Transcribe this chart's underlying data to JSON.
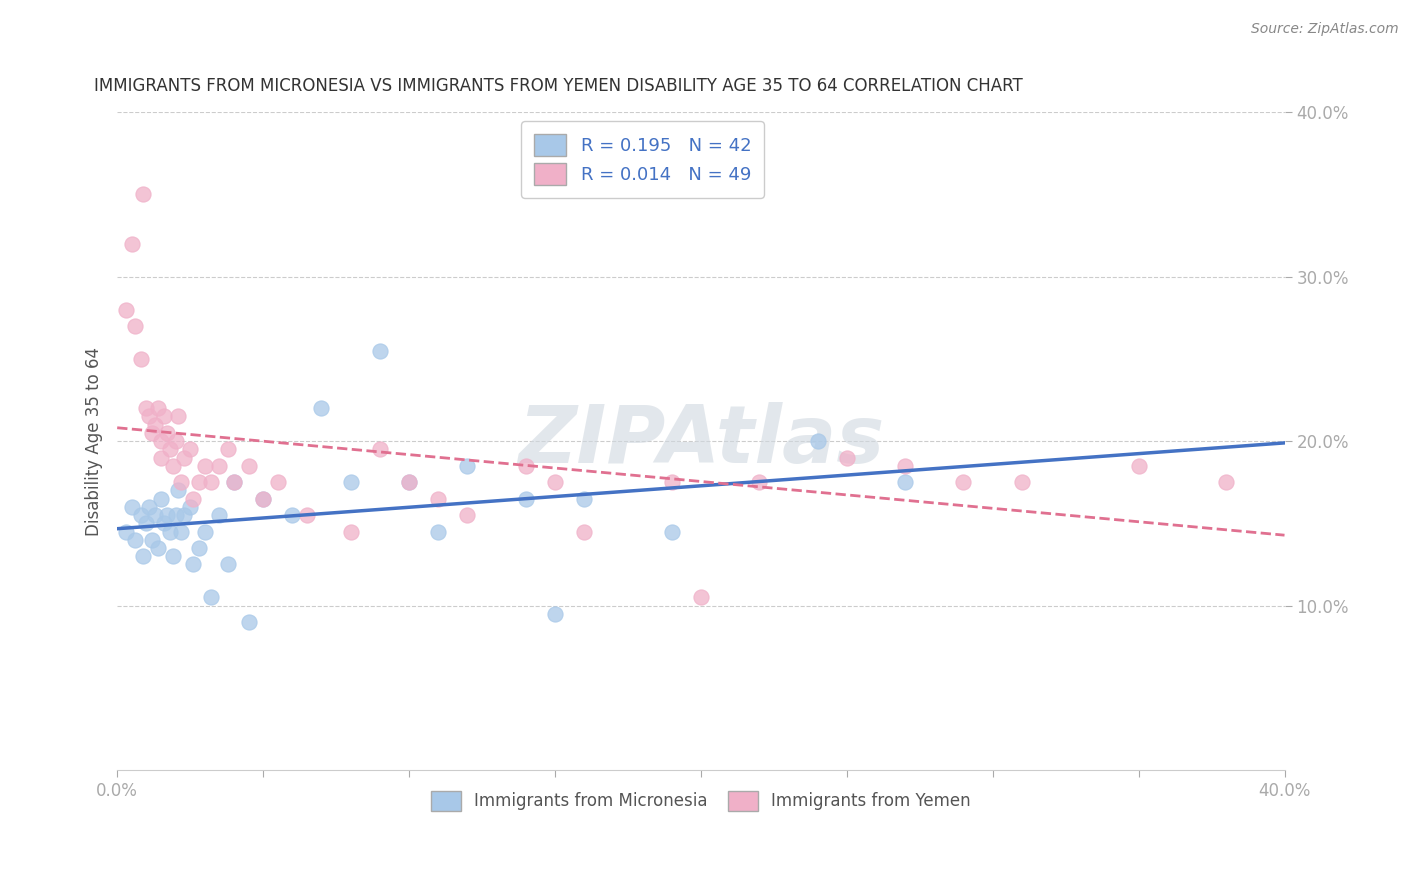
{
  "title": "IMMIGRANTS FROM MICRONESIA VS IMMIGRANTS FROM YEMEN DISABILITY AGE 35 TO 64 CORRELATION CHART",
  "source": "Source: ZipAtlas.com",
  "ylabel": "Disability Age 35 to 64",
  "xlim": [
    0.0,
    0.4
  ],
  "ylim": [
    0.0,
    0.4
  ],
  "yticks": [
    0.1,
    0.2,
    0.3,
    0.4
  ],
  "watermark": "ZIPAtlas",
  "legend_R1": "R = 0.195",
  "legend_N1": "N = 42",
  "legend_R2": "R = 0.014",
  "legend_N2": "N = 49",
  "color_micronesia": "#a8c8e8",
  "color_yemen": "#f0b0c8",
  "line_color_micronesia": "#4472c4",
  "line_color_yemen": "#e07090",
  "micronesia_x": [
    0.003,
    0.005,
    0.006,
    0.008,
    0.009,
    0.01,
    0.011,
    0.012,
    0.013,
    0.014,
    0.015,
    0.016,
    0.017,
    0.018,
    0.019,
    0.02,
    0.021,
    0.022,
    0.023,
    0.025,
    0.026,
    0.028,
    0.03,
    0.032,
    0.035,
    0.038,
    0.04,
    0.045,
    0.05,
    0.06,
    0.07,
    0.08,
    0.09,
    0.1,
    0.11,
    0.12,
    0.14,
    0.15,
    0.16,
    0.19,
    0.24,
    0.27
  ],
  "micronesia_y": [
    0.145,
    0.16,
    0.14,
    0.155,
    0.13,
    0.15,
    0.16,
    0.14,
    0.155,
    0.135,
    0.165,
    0.15,
    0.155,
    0.145,
    0.13,
    0.155,
    0.17,
    0.145,
    0.155,
    0.16,
    0.125,
    0.135,
    0.145,
    0.105,
    0.155,
    0.125,
    0.175,
    0.09,
    0.165,
    0.155,
    0.22,
    0.175,
    0.255,
    0.175,
    0.145,
    0.185,
    0.165,
    0.095,
    0.165,
    0.145,
    0.2,
    0.175
  ],
  "yemen_x": [
    0.003,
    0.005,
    0.006,
    0.008,
    0.009,
    0.01,
    0.011,
    0.012,
    0.013,
    0.014,
    0.015,
    0.015,
    0.016,
    0.017,
    0.018,
    0.019,
    0.02,
    0.021,
    0.022,
    0.023,
    0.025,
    0.026,
    0.028,
    0.03,
    0.032,
    0.035,
    0.038,
    0.04,
    0.045,
    0.05,
    0.055,
    0.065,
    0.08,
    0.09,
    0.1,
    0.11,
    0.12,
    0.14,
    0.15,
    0.16,
    0.19,
    0.2,
    0.22,
    0.25,
    0.27,
    0.29,
    0.31,
    0.35,
    0.38
  ],
  "yemen_y": [
    0.28,
    0.32,
    0.27,
    0.25,
    0.35,
    0.22,
    0.215,
    0.205,
    0.21,
    0.22,
    0.2,
    0.19,
    0.215,
    0.205,
    0.195,
    0.185,
    0.2,
    0.215,
    0.175,
    0.19,
    0.195,
    0.165,
    0.175,
    0.185,
    0.175,
    0.185,
    0.195,
    0.175,
    0.185,
    0.165,
    0.175,
    0.155,
    0.145,
    0.195,
    0.175,
    0.165,
    0.155,
    0.185,
    0.175,
    0.145,
    0.175,
    0.105,
    0.175,
    0.19,
    0.185,
    0.175,
    0.175,
    0.185,
    0.175
  ]
}
